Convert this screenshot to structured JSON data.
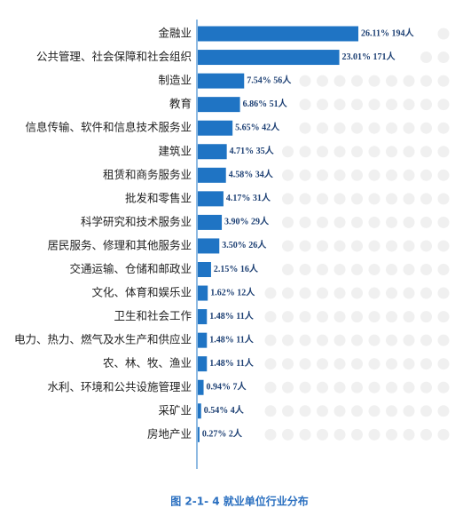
{
  "chart_data": {
    "type": "bar",
    "orientation": "horizontal",
    "caption": "图 2-1- 4 就业单位行业分布",
    "color": "#1f74c4",
    "categories": [
      "金融业",
      "公共管理、社会保障和社会组织",
      "制造业",
      "教育",
      "信息传输、软件和信息技术服务业",
      "建筑业",
      "租赁和商务服务业",
      "批发和零售业",
      "科学研究和技术服务业",
      "居民服务、修理和其他服务业",
      "交通运输、仓储和邮政业",
      "文化、体育和娱乐业",
      "卫生和社会工作",
      "电力、热力、燃气及水生产和供应业",
      "农、林、牧、渔业",
      "水利、环境和公共设施管理业",
      "采矿业",
      "房地产业"
    ],
    "values": [
      194,
      171,
      56,
      51,
      42,
      35,
      34,
      31,
      29,
      26,
      16,
      12,
      11,
      11,
      11,
      7,
      4,
      2
    ],
    "value_labels": [
      "26.11% 194人",
      "23.01% 171人",
      "7.54% 56人",
      "6.86% 51人",
      "5.65% 42人",
      "4.71% 35人",
      "4.58% 34人",
      "4.17% 31人",
      "3.90% 29人",
      "3.50% 26人",
      "2.15% 16人",
      "1.62% 12人",
      "1.48% 11人",
      "1.48% 11人",
      "1.48% 11人",
      "0.94% 7人",
      "0.54% 4人",
      "0.27% 2人"
    ]
  }
}
